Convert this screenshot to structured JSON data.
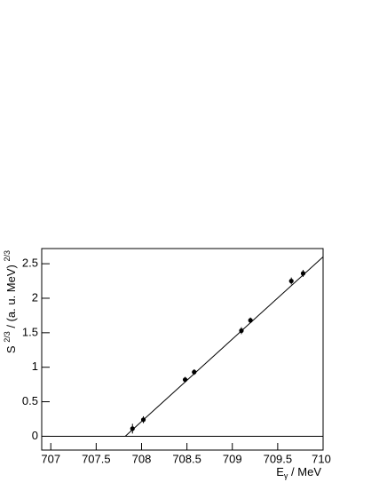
{
  "chart_data": {
    "type": "scatter",
    "x": [
      707.9,
      708.02,
      708.48,
      708.58,
      709.1,
      709.2,
      709.65,
      709.78
    ],
    "values": [
      0.11,
      0.24,
      0.82,
      0.93,
      1.53,
      1.68,
      2.25,
      2.36
    ],
    "errors": [
      0.07,
      0.05,
      0.04,
      0.04,
      0.05,
      0.04,
      0.05,
      0.05
    ],
    "color": "#000000",
    "fit": {
      "x": [
        707.82,
        710
      ],
      "y": [
        0,
        2.6
      ]
    },
    "hline": 0,
    "xlim": [
      706.9,
      710
    ],
    "ylim": [
      -0.2,
      2.72
    ],
    "xticks": [
      707,
      707.5,
      708,
      708.5,
      709,
      709.5,
      710
    ],
    "yticks": [
      0,
      0.5,
      1,
      1.5,
      2,
      2.5
    ],
    "xlabel_parts": [
      "E",
      "γ",
      " / MeV"
    ],
    "ylabel_parts": [
      "S ",
      "2/3",
      " / (a. u. MeV) ",
      "2/3"
    ]
  }
}
